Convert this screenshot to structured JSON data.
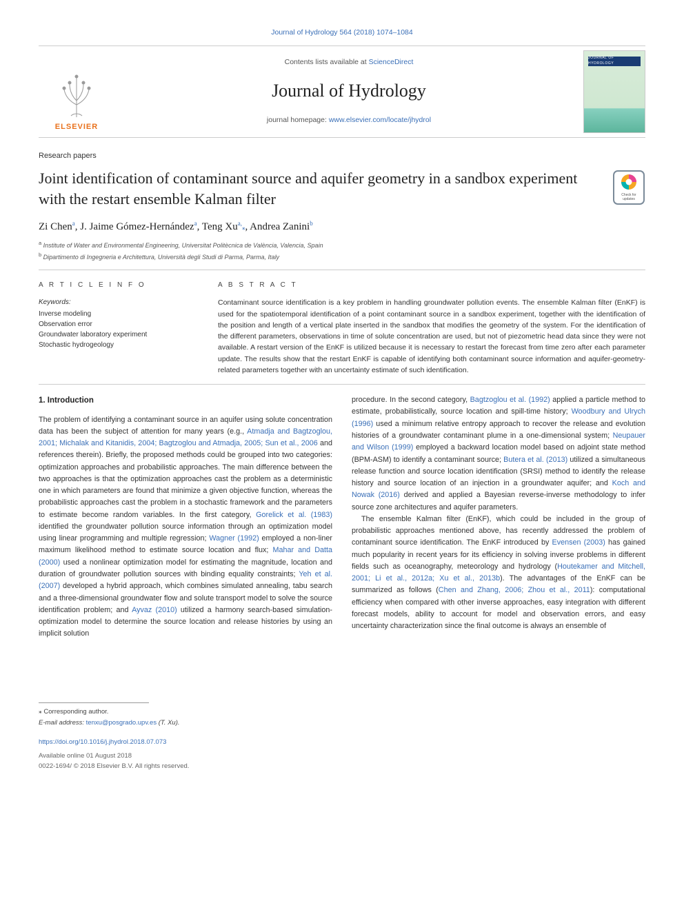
{
  "top_citation": "Journal of Hydrology 564 (2018) 1074–1084",
  "header": {
    "contents_prefix": "Contents lists available at ",
    "contents_link": "ScienceDirect",
    "journal_name": "Journal of Hydrology",
    "homepage_prefix": "journal homepage: ",
    "homepage_link": "www.elsevier.com/locate/jhydrol",
    "publisher_name": "ELSEVIER",
    "cover_bar_text": "JOURNAL OF HYDROLOGY"
  },
  "paper": {
    "section_label": "Research papers",
    "title": "Joint identification of contaminant source and aquifer geometry in a sandbox experiment with the restart ensemble Kalman filter",
    "authors_html": "Zi Chen<sup>a</sup>, J. Jaime Gómez-Hernández<sup>a</sup>, Teng Xu<sup>a,</sup><span class='corr'>⁎</span>, Andrea Zanini<sup>b</sup>",
    "affiliations": [
      "<sup>a</sup> Institute of Water and Environmental Engineering, Universitat Politècnica de València, Valencia, Spain",
      "<sup>b</sup> Dipartimento di Ingegneria e Architettura, Università degli Studi di Parma, Parma, Italy"
    ],
    "check_badge_caption": "Check for updates"
  },
  "article_info": {
    "heading": "A R T I C L E  I N F O",
    "kw_label": "Keywords:",
    "keywords": [
      "Inverse modeling",
      "Observation error",
      "Groundwater laboratory experiment",
      "Stochastic hydrogeology"
    ]
  },
  "abstract": {
    "heading": "A B S T R A C T",
    "text": "Contaminant source identification is a key problem in handling groundwater pollution events. The ensemble Kalman filter (EnKF) is used for the spatiotemporal identification of a point contaminant source in a sandbox experiment, together with the identification of the position and length of a vertical plate inserted in the sandbox that modifies the geometry of the system. For the identification of the different parameters, observations in time of solute concentration are used, but not of piezometric head data since they were not available. A restart version of the EnKF is utilized because it is necessary to restart the forecast from time zero after each parameter update. The results show that the restart EnKF is capable of identifying both contaminant source information and aquifer-geometry-related parameters together with an uncertainty estimate of such identification."
  },
  "body": {
    "intro_heading": "1. Introduction",
    "col1_p1_pre": "The problem of identifying a contaminant source in an aquifer using solute concentration data has been the subject of attention for many years (e.g., ",
    "col1_p1_ref1": "Atmadja and Bagtzoglou, 2001; Michalak and Kitanidis, 2004; Bagtzoglou and Atmadja, 2005; Sun et al., 2006",
    "col1_p1_mid": " and references therein). Briefly, the proposed methods could be grouped into two categories: optimization approaches and probabilistic approaches. The main difference between the two approaches is that the optimization approaches cast the problem as a deterministic one in which parameters are found that minimize a given objective function, whereas the probabilistic approaches cast the problem in a stochastic framework and the parameters to estimate become random variables. In the first category, ",
    "col1_p1_ref2": "Gorelick et al. (1983)",
    "col1_p1_mid2": " identified the groundwater pollution source information through an optimization model using linear programming and multiple regression; ",
    "col1_p1_ref3": "Wagner (1992)",
    "col1_p1_mid3": " employed a non-liner maximum likelihood method to estimate source location and flux; ",
    "col1_p1_ref4": "Mahar and Datta (2000)",
    "col1_p1_mid4": " used a nonlinear optimization model for estimating the magnitude, location and duration of groundwater pollution sources with binding equality constraints; ",
    "col1_p1_ref5": "Yeh et al. (2007)",
    "col1_p1_mid5": " developed a hybrid approach, which combines simulated annealing, tabu search and a three-dimensional groundwater flow and solute transport model to solve the source identification problem; and ",
    "col1_p1_ref6": "Ayvaz (2010)",
    "col1_p1_end": " utilized a harmony search-based simulation-optimization model to determine the source location and release histories by using an implicit solution",
    "col2_p1_pre": "procedure. In the second category, ",
    "col2_p1_ref1": "Bagtzoglou et al. (1992)",
    "col2_p1_mid1": " applied a particle method to estimate, probabilistically, source location and spill-time history; ",
    "col2_p1_ref2": "Woodbury and Ulrych (1996)",
    "col2_p1_mid2": " used a minimum relative entropy approach to recover the release and evolution histories of a groundwater contaminant plume in a one-dimensional system; ",
    "col2_p1_ref3": "Neupauer and Wilson (1999)",
    "col2_p1_mid3": " employed a backward location model based on adjoint state method (BPM-ASM) to identify a contaminant source; ",
    "col2_p1_ref4": "Butera et al. (2013)",
    "col2_p1_mid4": " utilized a simultaneous release function and source location identification (SRSI) method to identify the release history and source location of an injection in a groundwater aquifer; and ",
    "col2_p1_ref5": "Koch and Nowak (2016)",
    "col2_p1_end": " derived and applied a Bayesian reverse-inverse methodology to infer source zone architectures and aquifer parameters.",
    "col2_p2_pre": "The ensemble Kalman filter (EnKF), which could be included in the group of probabilistic approaches mentioned above, has recently addressed the problem of contaminant source identification. The EnKF introduced by ",
    "col2_p2_ref1": "Evensen (2003)",
    "col2_p2_mid1": " has gained much popularity in recent years for its efficiency in solving inverse problems in different fields such as oceanography, meteorology and hydrology (",
    "col2_p2_ref2": "Houtekamer and Mitchell, 2001; Li et al., 2012a; Xu et al., 2013b",
    "col2_p2_mid2": "). The advantages of the EnKF can be summarized as follows (",
    "col2_p2_ref3": "Chen and Zhang, 2006; Zhou et al., 2011",
    "col2_p2_end": "): computational efficiency when compared with other inverse approaches, easy integration with different forecast models, ability to account for model and observation errors, and easy uncertainty characterization since the final outcome is always an ensemble of"
  },
  "footer": {
    "corr_label": "⁎ Corresponding author.",
    "email_prefix": "E-mail address: ",
    "email": "tenxu@posgrado.upv.es",
    "email_suffix": " (T. Xu).",
    "doi": "https://doi.org/10.1016/j.jhydrol.2018.07.073",
    "available": "Available online 01 August 2018",
    "copyright": "0022-1694/ © 2018 Elsevier B.V. All rights reserved."
  },
  "style": {
    "link_color": "#3a6fb7",
    "text_color": "#333333",
    "border_color": "#cccccc",
    "elsevier_orange": "#e9711c",
    "badge_orange": "#f5a623",
    "badge_teal": "#00b3b0",
    "badge_pink": "#e84393",
    "badge_frame": "#7a8a99"
  }
}
